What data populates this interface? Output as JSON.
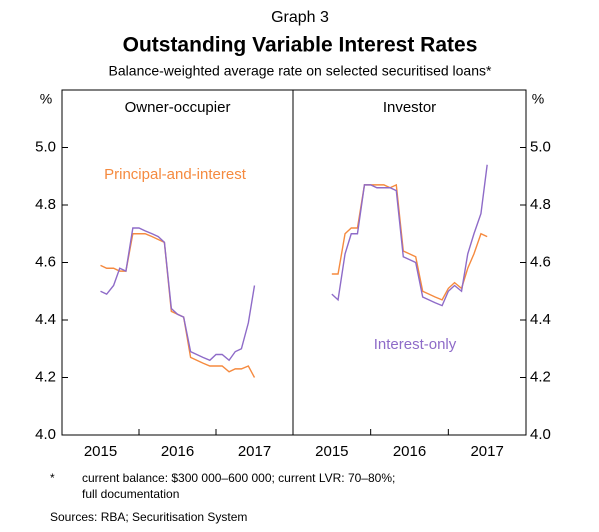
{
  "graph_label": "Graph 3",
  "title": "Outstanding Variable Interest Rates",
  "subtitle": "Balance-weighted average rate on selected securitised loans*",
  "y_unit": "%",
  "footnote_marker": "*",
  "footnote": [
    "current balance: $300 000–600 000; current LVR: 70–80%;",
    "full documentation"
  ],
  "sources": "Sources: RBA; Securitisation System",
  "chart_data": [
    {
      "type": "line",
      "title": "Owner-occupier",
      "x": [
        2015.5,
        2015.58,
        2015.67,
        2015.75,
        2015.83,
        2015.92,
        2016,
        2016.08,
        2016.17,
        2016.25,
        2016.33,
        2016.42,
        2016.5,
        2016.58,
        2016.67,
        2016.75,
        2016.83,
        2016.92,
        2017,
        2017.08,
        2017.17,
        2017.25,
        2017.33,
        2017.42,
        2017.5
      ],
      "series": [
        {
          "name": "Principal-and-interest",
          "color": "#f58a3f",
          "values": [
            4.59,
            4.58,
            4.58,
            4.57,
            4.57,
            4.7,
            4.7,
            4.7,
            4.69,
            4.68,
            4.67,
            4.43,
            4.42,
            4.41,
            4.27,
            4.26,
            4.25,
            4.24,
            4.24,
            4.24,
            4.22,
            4.23,
            4.23,
            4.24,
            4.2
          ]
        },
        {
          "name": "Interest-only",
          "color": "#8e6bc8",
          "values": [
            4.5,
            4.49,
            4.52,
            4.58,
            4.57,
            4.72,
            4.72,
            4.71,
            4.7,
            4.69,
            4.67,
            4.44,
            4.42,
            4.41,
            4.29,
            4.28,
            4.27,
            4.26,
            4.28,
            4.28,
            4.26,
            4.29,
            4.3,
            4.39,
            4.52
          ]
        }
      ],
      "xlim": [
        2015,
        2018
      ],
      "xticks": [
        2015,
        2016,
        2017
      ],
      "ylim": [
        4,
        5.2
      ],
      "yticks": [
        {
          "value": 4,
          "label": "4.0"
        },
        4.2,
        4.4,
        4.6,
        4.8,
        {
          "value": 5,
          "label": "5.0"
        }
      ]
    },
    {
      "type": "line",
      "title": "Investor",
      "x": [
        2015.5,
        2015.58,
        2015.67,
        2015.75,
        2015.83,
        2015.92,
        2016,
        2016.08,
        2016.17,
        2016.25,
        2016.33,
        2016.42,
        2016.5,
        2016.58,
        2016.67,
        2016.75,
        2016.83,
        2016.92,
        2017,
        2017.08,
        2017.17,
        2017.25,
        2017.33,
        2017.42,
        2017.5
      ],
      "series": [
        {
          "name": "Principal-and-interest",
          "color": "#f58a3f",
          "values": [
            4.56,
            4.56,
            4.7,
            4.72,
            4.72,
            4.87,
            4.87,
            4.87,
            4.87,
            4.86,
            4.87,
            4.64,
            4.63,
            4.62,
            4.5,
            4.49,
            4.48,
            4.47,
            4.51,
            4.53,
            4.51,
            4.58,
            4.63,
            4.7,
            4.69
          ]
        },
        {
          "name": "Interest-only",
          "color": "#8e6bc8",
          "values": [
            4.49,
            4.47,
            4.63,
            4.7,
            4.7,
            4.87,
            4.87,
            4.86,
            4.86,
            4.86,
            4.85,
            4.62,
            4.61,
            4.6,
            4.48,
            4.47,
            4.46,
            4.45,
            4.5,
            4.52,
            4.5,
            4.63,
            4.7,
            4.77,
            4.94
          ]
        }
      ],
      "xlim": [
        2015,
        2018
      ],
      "xticks": [
        2015,
        2016,
        2017
      ],
      "ylim": [
        4,
        5.2
      ],
      "yticks": [
        {
          "value": 4,
          "label": "4.0"
        },
        4.2,
        4.4,
        4.6,
        4.8,
        {
          "value": 5,
          "label": "5.0"
        }
      ]
    }
  ]
}
